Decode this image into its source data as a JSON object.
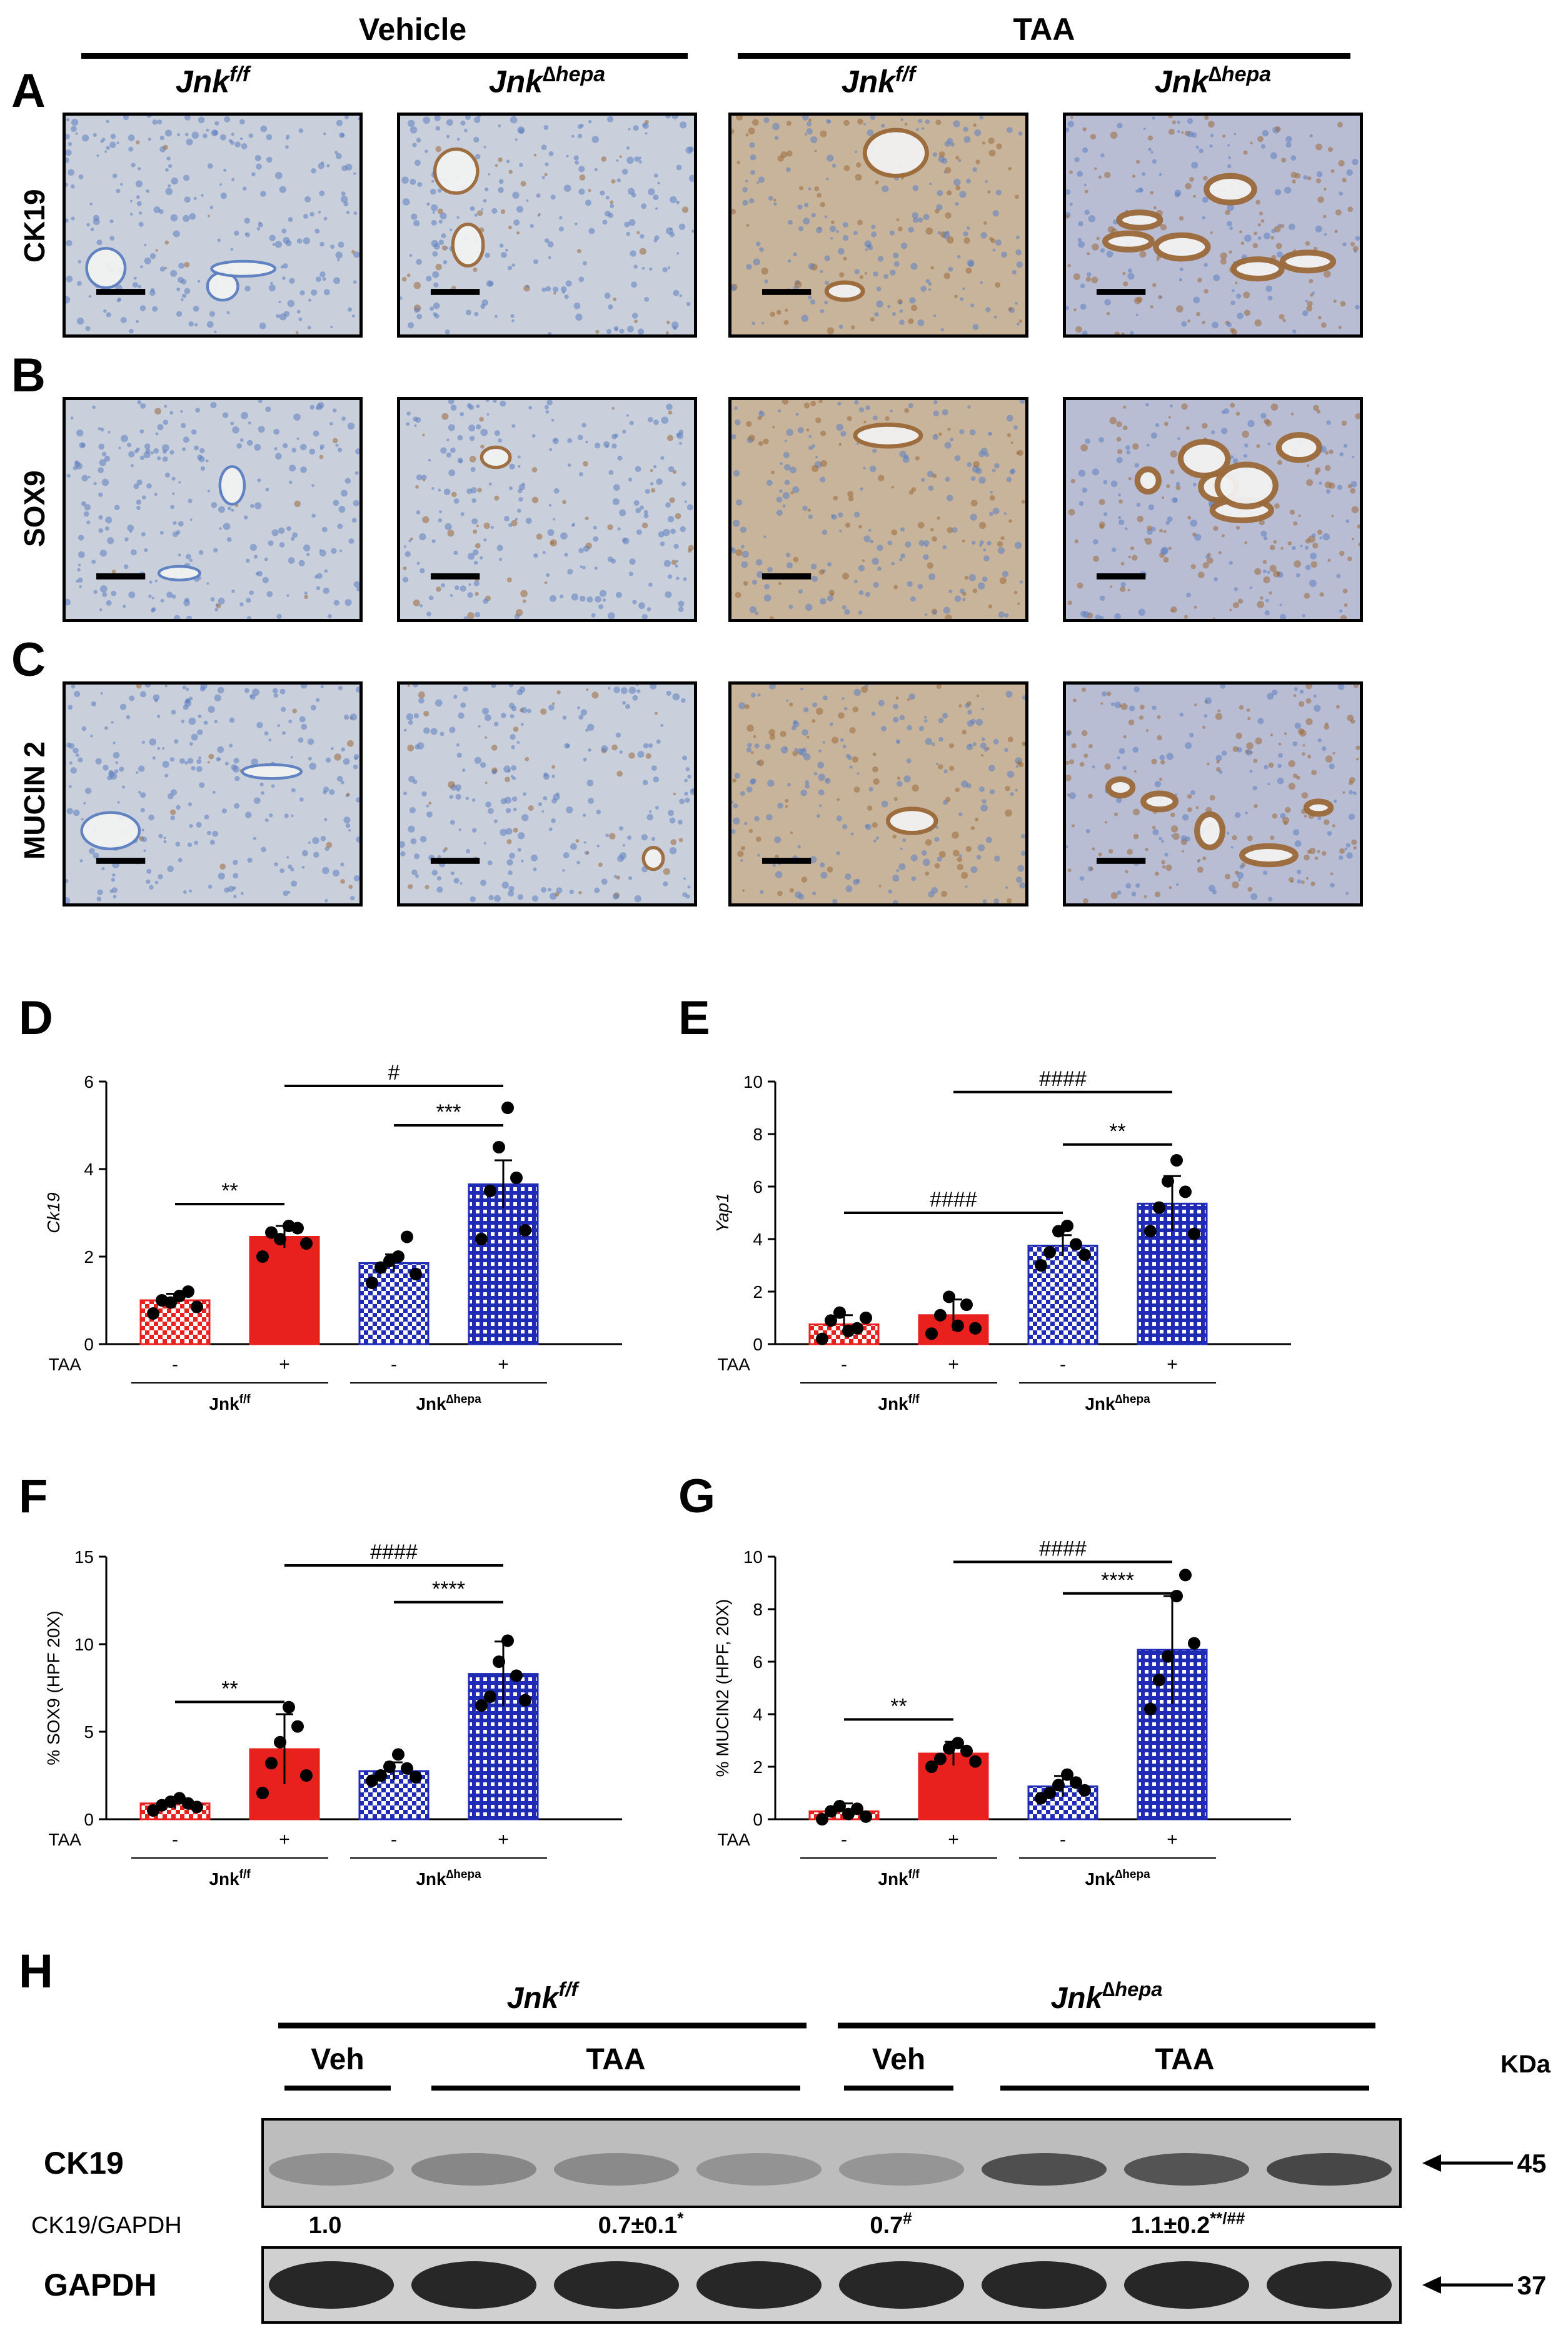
{
  "histology": {
    "groups": [
      "Vehicle",
      "TAA"
    ],
    "genotypes": [
      {
        "base": "Jnk",
        "sup": "f/f"
      },
      {
        "base": "Jnk",
        "sup": "∆hepa"
      },
      {
        "base": "Jnk",
        "sup": "f/f"
      },
      {
        "base": "Jnk",
        "sup": "∆hepa"
      }
    ],
    "rows": [
      {
        "panel": "A",
        "stain": "CK19"
      },
      {
        "panel": "B",
        "stain": "SOX9"
      },
      {
        "panel": "C",
        "stain": "MUCIN 2"
      }
    ],
    "colors": {
      "background": "#c9cfdb",
      "hematoxylin": "#5d7fc0",
      "dab": "#9b6a3a"
    }
  },
  "chart_data": [
    {
      "panel": "D",
      "type": "bar",
      "ylabel": "Ck19",
      "ylim": [
        0,
        6
      ],
      "yticks": [
        0,
        2,
        4,
        6
      ],
      "row_label": "TAA",
      "treatment": [
        "-",
        "+",
        "-",
        "+"
      ],
      "genotype_labels": [
        {
          "base": "Jnk",
          "sup": "f/f"
        },
        {
          "base": "Jnk",
          "sup": "∆hepa"
        }
      ],
      "values": [
        1.0,
        2.45,
        1.85,
        3.65
      ],
      "errors": [
        0.15,
        0.25,
        0.2,
        0.55
      ],
      "points": [
        [
          0.7,
          1.0,
          0.95,
          1.1,
          1.2,
          0.85
        ],
        [
          2.0,
          2.55,
          2.4,
          2.7,
          2.65,
          2.3
        ],
        [
          1.4,
          1.75,
          1.9,
          2.0,
          2.45,
          1.6
        ],
        [
          2.4,
          3.5,
          4.5,
          5.4,
          3.8,
          2.6
        ]
      ],
      "fills": [
        "checker-red",
        "solid-red",
        "checker-blue",
        "grid-blue"
      ],
      "significance": [
        {
          "from": 0,
          "to": 1,
          "label": "**",
          "y": 3.2
        },
        {
          "from": 2,
          "to": 3,
          "label": "***",
          "y": 5.0
        },
        {
          "from": 1,
          "to": 3,
          "label": "#",
          "y": 5.9
        }
      ]
    },
    {
      "panel": "E",
      "type": "bar",
      "ylabel": "Yap1",
      "ylim": [
        0,
        10
      ],
      "yticks": [
        0,
        2,
        4,
        6,
        8,
        10
      ],
      "row_label": "TAA",
      "treatment": [
        "-",
        "+",
        "-",
        "+"
      ],
      "genotype_labels": [
        {
          "base": "Jnk",
          "sup": "f/f"
        },
        {
          "base": "Jnk",
          "sup": "∆hepa"
        }
      ],
      "values": [
        0.75,
        1.1,
        3.75,
        5.35
      ],
      "errors": [
        0.35,
        0.6,
        0.4,
        1.05
      ],
      "points": [
        [
          0.2,
          0.9,
          1.2,
          0.5,
          0.6,
          1.0
        ],
        [
          0.4,
          1.1,
          1.8,
          0.7,
          1.5,
          0.6
        ],
        [
          3.0,
          3.5,
          4.3,
          4.5,
          3.8,
          3.4
        ],
        [
          4.3,
          5.2,
          6.2,
          7.0,
          5.8,
          4.2
        ]
      ],
      "fills": [
        "checker-red",
        "solid-red",
        "checker-blue",
        "grid-blue"
      ],
      "significance": [
        {
          "from": 0,
          "to": 2,
          "label": "####",
          "y": 5.0
        },
        {
          "from": 2,
          "to": 3,
          "label": "**",
          "y": 7.6
        },
        {
          "from": 1,
          "to": 3,
          "label": "####",
          "y": 9.6
        }
      ]
    },
    {
      "panel": "F",
      "type": "bar",
      "ylabel": "% SOX9 (HPF 20X)",
      "ylim": [
        0,
        15
      ],
      "yticks": [
        0,
        5,
        10,
        15
      ],
      "row_label": "TAA",
      "treatment": [
        "-",
        "+",
        "-",
        "+"
      ],
      "genotype_labels": [
        {
          "base": "Jnk",
          "sup": "f/f"
        },
        {
          "base": "Jnk",
          "sup": "∆hepa"
        }
      ],
      "values": [
        0.9,
        4.0,
        2.75,
        8.3
      ],
      "errors": [
        0.3,
        2.0,
        0.5,
        1.85
      ],
      "points": [
        [
          0.5,
          0.8,
          1.0,
          1.2,
          0.9,
          0.7
        ],
        [
          1.5,
          3.2,
          4.4,
          6.4,
          5.3,
          2.5
        ],
        [
          2.2,
          2.5,
          3.0,
          3.7,
          2.9,
          2.4
        ],
        [
          6.5,
          7.0,
          9.0,
          10.2,
          8.2,
          6.8
        ]
      ],
      "fills": [
        "checker-red",
        "solid-red",
        "checker-blue",
        "grid-blue"
      ],
      "significance": [
        {
          "from": 0,
          "to": 1,
          "label": "**",
          "y": 6.7
        },
        {
          "from": 2,
          "to": 3,
          "label": "****",
          "y": 12.4
        },
        {
          "from": 1,
          "to": 3,
          "label": "####",
          "y": 14.5
        }
      ]
    },
    {
      "panel": "G",
      "type": "bar",
      "ylabel": "% MUCIN2 (HPF, 20X)",
      "ylim": [
        0,
        10
      ],
      "yticks": [
        0,
        2,
        4,
        6,
        8,
        10
      ],
      "row_label": "TAA",
      "treatment": [
        "-",
        "+",
        "-",
        "+"
      ],
      "genotype_labels": [
        {
          "base": "Jnk",
          "sup": "f/f"
        },
        {
          "base": "Jnk",
          "sup": "∆hepa"
        }
      ],
      "values": [
        0.3,
        2.5,
        1.25,
        6.45
      ],
      "errors": [
        0.3,
        0.45,
        0.4,
        2.05
      ],
      "points": [
        [
          0.0,
          0.3,
          0.5,
          0.2,
          0.4,
          0.1
        ],
        [
          2.0,
          2.3,
          2.7,
          2.9,
          2.6,
          2.2
        ],
        [
          0.8,
          1.0,
          1.3,
          1.7,
          1.4,
          1.1
        ],
        [
          4.2,
          5.3,
          6.2,
          8.5,
          9.3,
          6.7
        ]
      ],
      "fills": [
        "checker-red",
        "solid-red",
        "checker-blue",
        "grid-blue"
      ],
      "significance": [
        {
          "from": 0,
          "to": 1,
          "label": "**",
          "y": 3.8
        },
        {
          "from": 2,
          "to": 3,
          "label": "****",
          "y": 8.6
        },
        {
          "from": 1,
          "to": 3,
          "label": "####",
          "y": 9.8
        }
      ]
    }
  ],
  "western": {
    "panel": "H",
    "genotypes": [
      {
        "base": "Jnk",
        "sup": "f/f"
      },
      {
        "base": "Jnk",
        "sup": "∆hepa"
      }
    ],
    "treatments": [
      "Veh",
      "TAA",
      "Veh",
      "TAA"
    ],
    "kda_label": "KDa",
    "bands": [
      {
        "name": "CK19",
        "kda": "45",
        "intensity": [
          0.35,
          0.4,
          0.38,
          0.33,
          0.32,
          0.75,
          0.72,
          0.8
        ]
      },
      {
        "name": "GAPDH",
        "kda": "37",
        "intensity": [
          1,
          1,
          1,
          1,
          1,
          1,
          1,
          1
        ]
      }
    ],
    "ratio_label": "CK19/GAPDH",
    "ratios": [
      {
        "text": "1.0",
        "sup": ""
      },
      {
        "text": "0.7±0.1",
        "sup": "*"
      },
      {
        "text": "0.7",
        "sup": "#"
      },
      {
        "text": "1.1±0.2",
        "sup": "**/##"
      }
    ]
  }
}
